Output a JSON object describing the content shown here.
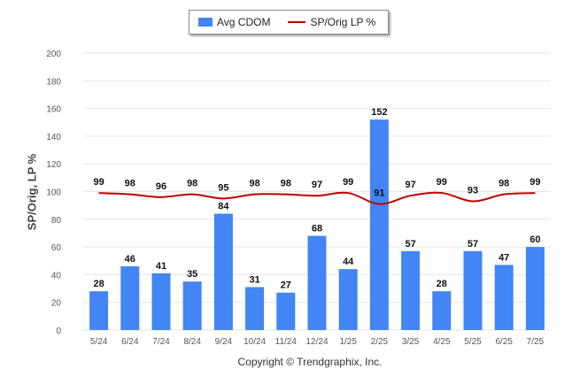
{
  "legend": {
    "bar_label": "Avg CDOM",
    "line_label": "SP/Orig LP %"
  },
  "y_axis_title": "SP/Orig, LP %",
  "copyright": "Copyright © Trendgraphix, Inc.",
  "colors": {
    "bar": "#4285f4",
    "line": "#c00000",
    "grid": "#e6e6e6",
    "axis_text": "#555555"
  },
  "chart_data": {
    "type": "bar",
    "categories": [
      "5/24",
      "6/24",
      "7/24",
      "8/24",
      "9/24",
      "10/24",
      "11/24",
      "12/24",
      "1/25",
      "2/25",
      "3/25",
      "4/25",
      "5/25",
      "6/25",
      "7/25"
    ],
    "series": [
      {
        "name": "Avg CDOM",
        "type": "bar",
        "values": [
          28,
          46,
          41,
          35,
          84,
          31,
          27,
          68,
          44,
          152,
          57,
          28,
          57,
          47,
          60
        ]
      },
      {
        "name": "SP/Orig LP %",
        "type": "line",
        "values": [
          99,
          98,
          96,
          98,
          95,
          98,
          98,
          97,
          99,
          91,
          97,
          99,
          93,
          98,
          99
        ]
      }
    ],
    "ylabel": "SP/Orig, LP %",
    "xlabel": "",
    "ylim": [
      0,
      200
    ],
    "yticks": [
      0,
      20,
      40,
      60,
      80,
      100,
      120,
      140,
      160,
      180,
      200
    ],
    "grid": true,
    "legend_position": "top-center"
  }
}
